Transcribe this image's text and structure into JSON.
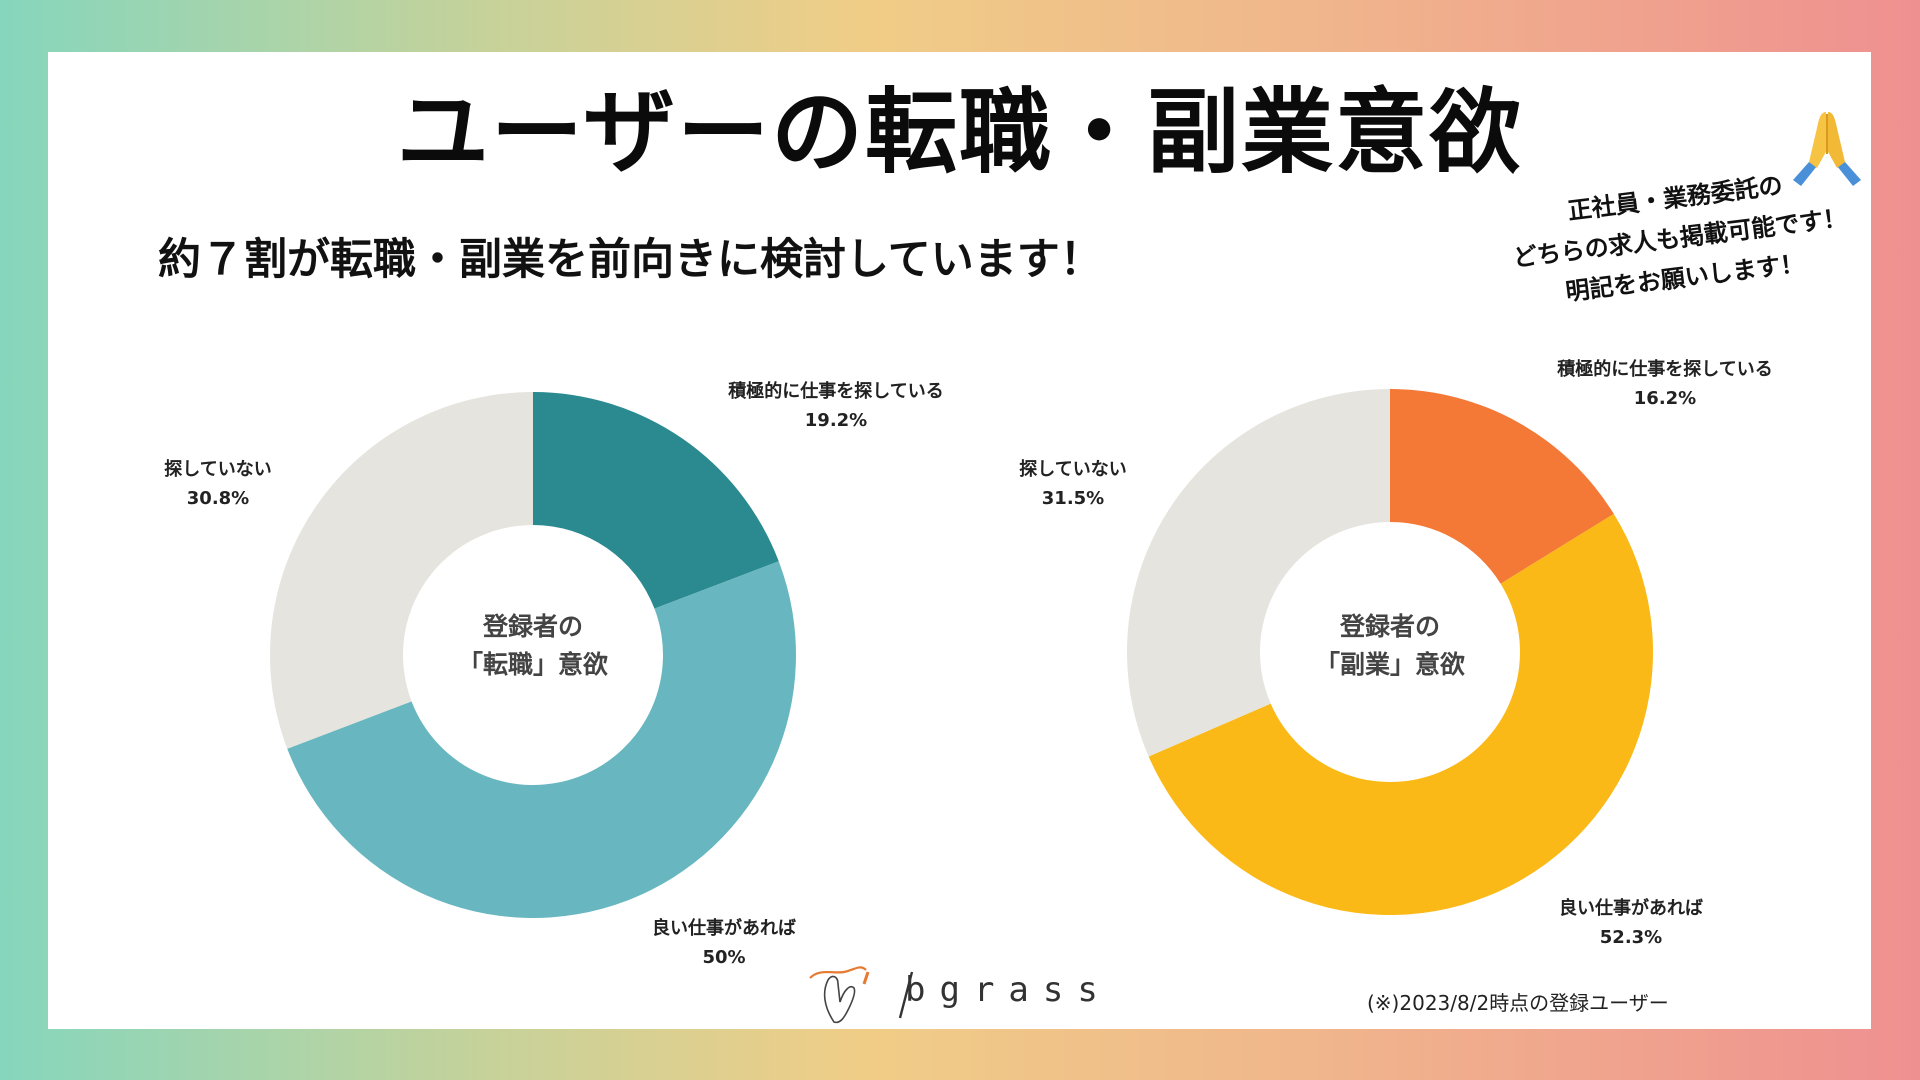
{
  "title": "ユーザーの転職・副業意欲",
  "subtitle": "約７割が転職・副業を前向きに検討しています！",
  "note": {
    "line1": "正社員・業務委託の",
    "line2": "どちらの求人も掲載可能です！",
    "line3": "明記をお願いします！"
  },
  "emoji_icon": "folded-hands-icon",
  "brand": "bgrass",
  "footnote": "(※)2023/8/2時点の登録ユーザー",
  "chart_data": [
    {
      "type": "pie",
      "donut": true,
      "center_label": [
        "登録者の",
        "「転職」意欲"
      ],
      "slices": [
        {
          "label": "積極的に仕事を探している",
          "value": 19.2,
          "value_text": "19.2%",
          "color": "#2a8a90"
        },
        {
          "label": "良い仕事があれば",
          "value": 50,
          "value_text": "50%",
          "color": "#68b7c0"
        },
        {
          "label": "探していない",
          "value": 30.8,
          "value_text": "30.8%",
          "color": "#e6e4df"
        }
      ]
    },
    {
      "type": "pie",
      "donut": true,
      "center_label": [
        "登録者の",
        "「副業」意欲"
      ],
      "slices": [
        {
          "label": "積極的に仕事を探している",
          "value": 16.2,
          "value_text": "16.2%",
          "color": "#f47836"
        },
        {
          "label": "良い仕事があれば",
          "value": 52.3,
          "value_text": "52.3%",
          "color": "#fbb917"
        },
        {
          "label": "探していない",
          "value": 31.5,
          "value_text": "31.5%",
          "color": "#e6e4df"
        }
      ]
    }
  ]
}
